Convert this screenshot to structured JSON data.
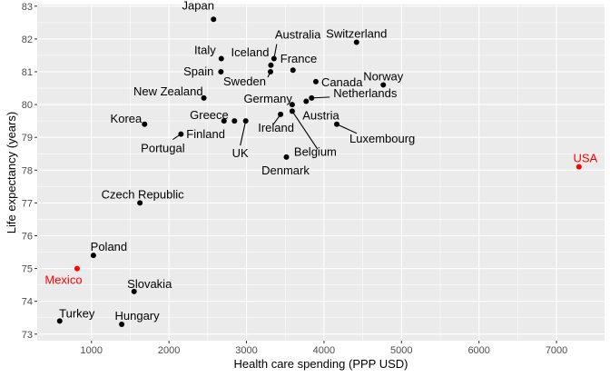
{
  "chart_data": {
    "type": "scatter",
    "xlabel": "Health care spending (PPP USD)",
    "ylabel": "Life expectancy (years)",
    "xlim": [
      300,
      7620
    ],
    "ylim": [
      72.8,
      83.05
    ],
    "x_ticks": [
      1000,
      2000,
      3000,
      4000,
      5000,
      6000,
      7000
    ],
    "x_tick_labels": [
      "1000",
      "2000",
      "3000",
      "4000",
      "5000",
      "6000",
      "7000"
    ],
    "y_ticks": [
      73,
      74,
      75,
      76,
      77,
      78,
      79,
      80,
      81,
      82,
      83
    ],
    "y_tick_labels": [
      "73",
      "74",
      "75",
      "76",
      "77",
      "78",
      "79",
      "80",
      "81",
      "82",
      "83"
    ],
    "grid": true,
    "colors": {
      "panel": "#ebebeb",
      "grid": "#ffffff",
      "point": "#000000",
      "highlight": "#ff0000"
    },
    "points": [
      {
        "label": "Japan",
        "x": 2575,
        "y": 82.6
      },
      {
        "label": "Switzerland",
        "x": 4420,
        "y": 81.9
      },
      {
        "label": "Australia",
        "x": 3355,
        "y": 81.4
      },
      {
        "label": "Italy",
        "x": 2675,
        "y": 81.4
      },
      {
        "label": "Iceland",
        "x": 3315,
        "y": 81.2
      },
      {
        "label": "France",
        "x": 3600,
        "y": 81.05
      },
      {
        "label": "Spain",
        "x": 2670,
        "y": 81.0
      },
      {
        "label": "Sweden",
        "x": 3310,
        "y": 81.0
      },
      {
        "label": "Canada",
        "x": 3895,
        "y": 80.7
      },
      {
        "label": "Norway",
        "x": 4765,
        "y": 80.6
      },
      {
        "label": "New Zealand",
        "x": 2450,
        "y": 80.2
      },
      {
        "label": "Netherlands",
        "x": 3840,
        "y": 80.2
      },
      {
        "label": "Germany",
        "x": 3590,
        "y": 80.0
      },
      {
        "label": "Austria",
        "x": 3770,
        "y": 80.1
      },
      {
        "label": "Korea",
        "x": 1685,
        "y": 79.4
      },
      {
        "label": "Greece",
        "x": 2710,
        "y": 79.5
      },
      {
        "label": "Finland",
        "x": 2845,
        "y": 79.5
      },
      {
        "label": "Ireland",
        "x": 3440,
        "y": 79.7
      },
      {
        "label": "Belgium",
        "x": 3590,
        "y": 79.8
      },
      {
        "label": "Luxembourg",
        "x": 4165,
        "y": 79.4
      },
      {
        "label": "Portugal",
        "x": 2155,
        "y": 79.1
      },
      {
        "label": "UK",
        "x": 2990,
        "y": 79.5
      },
      {
        "label": "Denmark",
        "x": 3515,
        "y": 78.4
      },
      {
        "label": "USA",
        "x": 7290,
        "y": 78.1,
        "highlight": true
      },
      {
        "label": "Czech Republic",
        "x": 1625,
        "y": 77.0
      },
      {
        "label": "Poland",
        "x": 1025,
        "y": 75.4
      },
      {
        "label": "Mexico",
        "x": 815,
        "y": 75.0,
        "highlight": true
      },
      {
        "label": "Slovakia",
        "x": 1550,
        "y": 74.3
      },
      {
        "label": "Turkey",
        "x": 590,
        "y": 73.4
      },
      {
        "label": "Hungary",
        "x": 1390,
        "y": 73.3
      }
    ]
  }
}
